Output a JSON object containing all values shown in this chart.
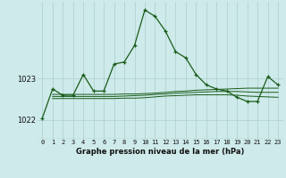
{
  "title": "Graphe pression niveau de la mer (hPa)",
  "background_color": "#ceeaea",
  "grid_color": "#aecece",
  "line_color": "#1a5c1a",
  "x_labels": [
    "0",
    "1",
    "2",
    "3",
    "4",
    "5",
    "6",
    "7",
    "8",
    "9",
    "10",
    "11",
    "12",
    "13",
    "14",
    "15",
    "16",
    "17",
    "18",
    "19",
    "20",
    "21",
    "22",
    "23"
  ],
  "yticks": [
    1022,
    1023
  ],
  "ylim": [
    1021.55,
    1024.85
  ],
  "xlim": [
    -0.5,
    23.5
  ],
  "series1_x": [
    0,
    1,
    2,
    3,
    4,
    5,
    6,
    7,
    8,
    9,
    10,
    11,
    12,
    13,
    14,
    15,
    16,
    17,
    18,
    19,
    20,
    21,
    22,
    23
  ],
  "series1_y": [
    1022.05,
    1022.75,
    1022.6,
    1022.6,
    1023.1,
    1022.7,
    1022.7,
    1023.35,
    1023.4,
    1023.8,
    1024.65,
    1024.5,
    1024.15,
    1023.65,
    1023.5,
    1023.1,
    1022.85,
    1022.75,
    1022.7,
    1022.55,
    1022.45,
    1022.45,
    1023.05,
    1022.85
  ],
  "series2_x": [
    1,
    2,
    3,
    4,
    5,
    6,
    7,
    8,
    9,
    10,
    11,
    12,
    13,
    14,
    15,
    16,
    17,
    18,
    19,
    20,
    21,
    22,
    23
  ],
  "series2_y": [
    1022.62,
    1022.62,
    1022.62,
    1022.62,
    1022.62,
    1022.62,
    1022.62,
    1022.63,
    1022.63,
    1022.64,
    1022.65,
    1022.67,
    1022.69,
    1022.7,
    1022.72,
    1022.73,
    1022.74,
    1022.75,
    1022.76,
    1022.77,
    1022.77,
    1022.77,
    1022.77
  ],
  "series3_x": [
    1,
    2,
    3,
    4,
    5,
    6,
    7,
    8,
    9,
    10,
    11,
    12,
    13,
    14,
    15,
    16,
    17,
    18,
    19,
    20,
    21,
    22,
    23
  ],
  "series3_y": [
    1022.57,
    1022.57,
    1022.57,
    1022.57,
    1022.57,
    1022.57,
    1022.57,
    1022.58,
    1022.59,
    1022.6,
    1022.62,
    1022.63,
    1022.65,
    1022.66,
    1022.67,
    1022.68,
    1022.69,
    1022.69,
    1022.69,
    1022.68,
    1022.67,
    1022.67,
    1022.67
  ],
  "series4_x": [
    1,
    2,
    3,
    4,
    5,
    6,
    7,
    8,
    9,
    10,
    11,
    12,
    13,
    14,
    15,
    16,
    17,
    18,
    19,
    20,
    21,
    22,
    23
  ],
  "series4_y": [
    1022.52,
    1022.52,
    1022.52,
    1022.52,
    1022.52,
    1022.52,
    1022.52,
    1022.53,
    1022.53,
    1022.54,
    1022.56,
    1022.58,
    1022.59,
    1022.6,
    1022.61,
    1022.61,
    1022.61,
    1022.61,
    1022.6,
    1022.58,
    1022.57,
    1022.56,
    1022.55
  ]
}
